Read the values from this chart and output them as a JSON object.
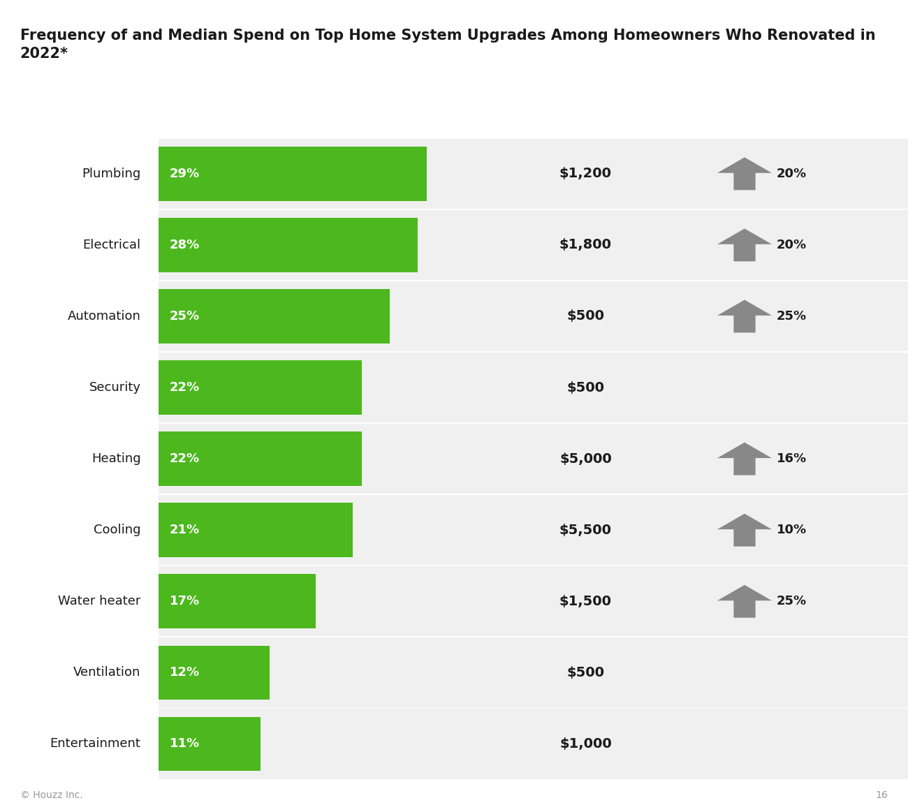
{
  "title_line1": "Frequency of and Median Spend on Top Home System Upgrades Among Homeowners Who Renovated in",
  "title_line2": "2022*",
  "categories": [
    "Plumbing",
    "Electrical",
    "Automation",
    "Security",
    "Heating",
    "Cooling",
    "Water heater",
    "Ventilation",
    "Entertainment"
  ],
  "values": [
    29,
    28,
    25,
    22,
    22,
    21,
    17,
    12,
    11
  ],
  "bar_max": 29,
  "median_spend": [
    "$1,200",
    "$1,800",
    "$500",
    "$500",
    "$5,000",
    "$5,500",
    "$1,500",
    "$500",
    "$1,000"
  ],
  "increase_pct": [
    "20%",
    "20%",
    "25%",
    null,
    "16%",
    "10%",
    "25%",
    null,
    null
  ],
  "bar_color": "#4cb81e",
  "bg_color_row": "#f0f0f0",
  "text_color": "#1a1a1a",
  "arrow_color": "#888888",
  "footer": "© Houzz Inc.",
  "page_num": "16",
  "title_fontsize": 15,
  "cat_fontsize": 13,
  "bar_label_fontsize": 13,
  "spend_fontsize": 14,
  "increase_fontsize": 13
}
